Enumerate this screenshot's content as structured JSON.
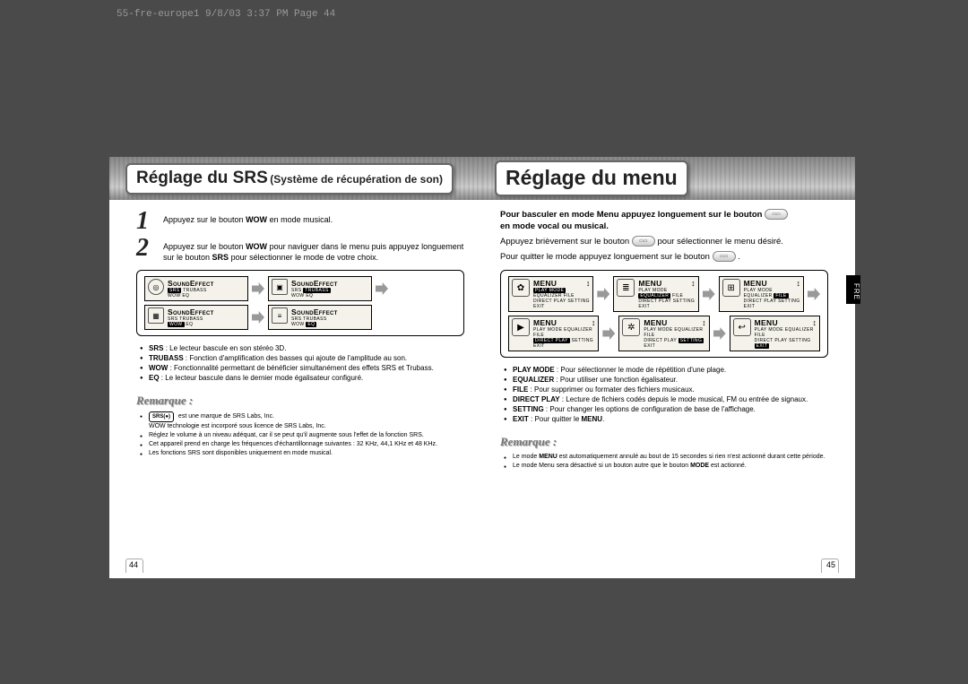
{
  "header": "55-fre-europe1  9/8/03  3:37 PM  Page 44",
  "lang_tab": "FRE",
  "left": {
    "title_main": "Réglage du SRS",
    "title_sub": "(Système de récupération de son)",
    "page_num": "44",
    "steps": [
      {
        "num": "1",
        "html": "Appuyez sur le bouton <b>WOW</b> en mode musical."
      },
      {
        "num": "2",
        "html": "Appuyez sur le bouton <b>WOW</b> pour naviguer dans le menu puis appuyez longuement sur le bouton <b>SRS</b> pour sélectionner le mode de votre choix."
      }
    ],
    "lcds": [
      {
        "icon": "◎",
        "shape": "round",
        "title": "SoundEffect",
        "line1_pill": "SRS",
        "line1": "TRUBASS",
        "line2": "WOW  EQ"
      },
      {
        "icon": "▣",
        "shape": "sq",
        "title": "SoundEffect",
        "line1": "SRS",
        "line1_pill2": "TRUBASS",
        "line2": "WOW  EQ"
      },
      {
        "icon": "▦",
        "shape": "sq",
        "title": "SoundEffect",
        "line1": "SRS  TRUBASS",
        "line2_pill": "WOW",
        "line2_after": "EQ"
      },
      {
        "icon": "≡",
        "shape": "sq",
        "title": "SoundEffect",
        "line1": "SRS  TRUBASS",
        "line2": "WOW",
        "line2_pill2": "EQ"
      }
    ],
    "defs": [
      {
        "b": "SRS",
        "t": ": Le lecteur bascule en son stéréo 3D."
      },
      {
        "b": "TRUBASS",
        "t": ": Fonction d'amplification des basses qui ajoute de l'amplitude au son."
      },
      {
        "b": "WOW",
        "t": ": Fonctionnalité permettant de bénéficier simultanément des effets SRS et Trubass."
      },
      {
        "b": "EQ",
        "t": ": Le lecteur bascule dans le dernier mode égalisateur configuré."
      }
    ],
    "remarque": "Remarque :",
    "notes_logo_line": "est une marque de SRS Labs, Inc.",
    "notes_logo_line2": "WOW technologie est incorporé sous licence de SRS Labs, Inc.",
    "notes": [
      "Réglez le volume à un niveau adéquat, car il se peut qu'il augmente sous l'effet de la fonction SRS.",
      "Cet appareil prend en charge les fréquences d'échantillonnage suivantes : 32 KHz, 44,1 KHz et 48 KHz.",
      "Les fonctions SRS sont disponibles uniquement en mode musical."
    ]
  },
  "right": {
    "title": "Réglage du menu",
    "page_num": "45",
    "intro1_html": "<b>Pour basculer en mode Menu appuyez longuement sur le bouton</b>",
    "intro1b_html": "<b>en mode vocal ou musical.</b>",
    "intro2_a": "Appuyez brièvement sur le bouton",
    "intro2_b": "pour sélectionner le menu désiré.",
    "intro3_a": "Pour quitter le mode appuyez longuement sur le bouton",
    "lcds": [
      {
        "icon": "✿",
        "title": "MENU",
        "line1_pill": "PLAY MODE",
        "line1": "EQUALIZER  FILE",
        "line2": "DIRECT PLAY  SETTING  EXIT"
      },
      {
        "icon": "≣",
        "title": "MENU",
        "line1": "PLAY MODE",
        "line1_pill2": "EQUALIZER",
        "line1_after": "FILE",
        "line2": "DIRECT PLAY  SETTING  EXIT"
      },
      {
        "icon": "⊞",
        "title": "MENU",
        "line1": "PLAY MODE  EQUALIZER",
        "line1_pill2": "FILE",
        "line2": "DIRECT PLAY  SETTING  EXIT"
      },
      {
        "icon": "▶",
        "title": "MENU",
        "line1": "PLAY MODE  EQUALIZER  FILE",
        "line2_pill": "DIRECT PLAY",
        "line2_after": "SETTING  EXIT"
      },
      {
        "icon": "✲",
        "title": "MENU",
        "line1": "PLAY MODE  EQUALIZER  FILE",
        "line2": "DIRECT PLAY",
        "line2_pill2": "SETTING",
        "line2_after2": "EXIT"
      },
      {
        "icon": "↩",
        "title": "MENU",
        "line1": "PLAY MODE  EQUALIZER  FILE",
        "line2": "DIRECT PLAY  SETTING",
        "line2_pill2": "EXIT"
      }
    ],
    "defs": [
      {
        "b": "PLAY MODE",
        "t": ": Pour sélectionner le mode de répétition d'une plage."
      },
      {
        "b": "EQUALIZER",
        "t": ": Pour utiliser une fonction égalisateur."
      },
      {
        "b": "FILE",
        "t": ": Pour supprimer ou formater des fichiers musicaux."
      },
      {
        "b": "DIRECT PLAY",
        "t": ": Lecture de fichiers codés depuis le mode musical, FM ou entrée de signaux."
      },
      {
        "b": "SETTING",
        "t": ": Pour changer les options de configuration de base de l'affichage."
      },
      {
        "b": "EXIT",
        "t2_html": ": Pour quitter le <b>MENU</b>."
      }
    ],
    "remarque": "Remarque :",
    "notes": [
      "Le mode <b>MENU</b> est automatiquement annulé au bout de 15 secondes si rien n'est actionné durant cette période.",
      "Le mode Menu sera désactivé si un bouton autre que le bouton <b>MODE</b> est actionné."
    ]
  }
}
